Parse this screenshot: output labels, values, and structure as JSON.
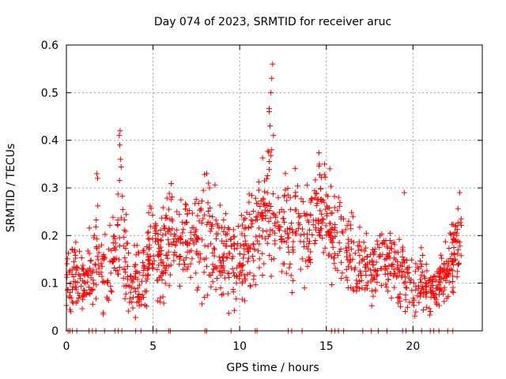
{
  "chart_data": {
    "type": "scatter",
    "title": "Day 074 of 2023, SRMTID for receiver aruc",
    "xlabel": "GPS time / hours",
    "ylabel": "SRMTID / TECUs",
    "xlim": [
      0,
      24
    ],
    "ylim": [
      0,
      0.6
    ],
    "xticks": [
      0,
      5,
      10,
      15,
      20
    ],
    "xtick_labels": [
      "0",
      "5",
      "10",
      "15",
      "20"
    ],
    "yticks": [
      0,
      0.1,
      0.2,
      0.3,
      0.4,
      0.5,
      0.6
    ],
    "ytick_labels": [
      "0",
      "0.1",
      "0.2",
      "0.3",
      "0.4",
      "0.5",
      "0.6"
    ],
    "grid": true,
    "marker": "+",
    "series_color": "#ff0000",
    "envelope": {
      "x": [
        0,
        0.5,
        1,
        1.5,
        1.8,
        2,
        2.5,
        3,
        3.2,
        3.6,
        4,
        4.5,
        5,
        5.5,
        6,
        6.5,
        7,
        7.5,
        8,
        8.5,
        9,
        9.5,
        10,
        10.5,
        11,
        11.5,
        11.8,
        12,
        12.5,
        13,
        13.5,
        14,
        14.5,
        15,
        15.5,
        16,
        16.5,
        17,
        17.5,
        18,
        18.5,
        19,
        19.5,
        20,
        20.5,
        21,
        21.5,
        22,
        22.5,
        22.8
      ],
      "center": [
        0.11,
        0.12,
        0.1,
        0.12,
        0.18,
        0.13,
        0.12,
        0.2,
        0.25,
        0.1,
        0.09,
        0.12,
        0.18,
        0.15,
        0.2,
        0.17,
        0.2,
        0.2,
        0.22,
        0.2,
        0.18,
        0.14,
        0.14,
        0.18,
        0.21,
        0.25,
        0.28,
        0.26,
        0.22,
        0.2,
        0.22,
        0.21,
        0.26,
        0.24,
        0.2,
        0.17,
        0.15,
        0.12,
        0.13,
        0.14,
        0.15,
        0.13,
        0.12,
        0.1,
        0.11,
        0.09,
        0.1,
        0.12,
        0.18,
        0.2
      ],
      "spread": [
        0.05,
        0.05,
        0.05,
        0.06,
        0.08,
        0.06,
        0.06,
        0.08,
        0.12,
        0.05,
        0.05,
        0.06,
        0.07,
        0.07,
        0.07,
        0.06,
        0.07,
        0.07,
        0.09,
        0.07,
        0.07,
        0.06,
        0.06,
        0.07,
        0.07,
        0.09,
        0.15,
        0.1,
        0.08,
        0.08,
        0.08,
        0.08,
        0.08,
        0.08,
        0.07,
        0.06,
        0.06,
        0.05,
        0.05,
        0.05,
        0.05,
        0.06,
        0.06,
        0.05,
        0.05,
        0.04,
        0.04,
        0.05,
        0.06,
        0.06
      ]
    },
    "peaks": [
      {
        "x": 11.9,
        "y": 0.56
      },
      {
        "x": 11.85,
        "y": 0.53
      },
      {
        "x": 11.8,
        "y": 0.5
      },
      {
        "x": 11.7,
        "y": 0.46
      },
      {
        "x": 11.75,
        "y": 0.43
      },
      {
        "x": 11.95,
        "y": 0.41
      },
      {
        "x": 11.85,
        "y": 0.38
      },
      {
        "x": 3.1,
        "y": 0.42
      },
      {
        "x": 3.05,
        "y": 0.41
      },
      {
        "x": 3.08,
        "y": 0.39
      },
      {
        "x": 3.12,
        "y": 0.36
      },
      {
        "x": 1.75,
        "y": 0.33
      },
      {
        "x": 1.8,
        "y": 0.32
      },
      {
        "x": 8.1,
        "y": 0.33
      },
      {
        "x": 8.2,
        "y": 0.31
      },
      {
        "x": 14.6,
        "y": 0.35
      },
      {
        "x": 14.9,
        "y": 0.35
      },
      {
        "x": 15.2,
        "y": 0.34
      },
      {
        "x": 19.5,
        "y": 0.29
      },
      {
        "x": 22.7,
        "y": 0.29
      }
    ],
    "zero_markers_x": [
      0.1,
      0.2,
      0.35,
      0.6,
      1.3,
      1.5,
      1.7,
      2.2,
      2.8,
      3.0,
      3.2,
      4.0,
      4.3,
      5.0,
      5.2,
      5.9,
      6.0,
      8.0,
      8.1,
      9.5,
      10.9,
      11.0,
      12.8,
      13.0,
      13.6,
      15.3,
      15.5,
      15.7,
      16.0,
      17.1,
      17.6,
      18.0,
      18.5,
      19.4,
      19.6,
      20.0,
      20.5,
      21.0,
      21.2,
      21.5,
      22.0,
      22.3
    ]
  }
}
